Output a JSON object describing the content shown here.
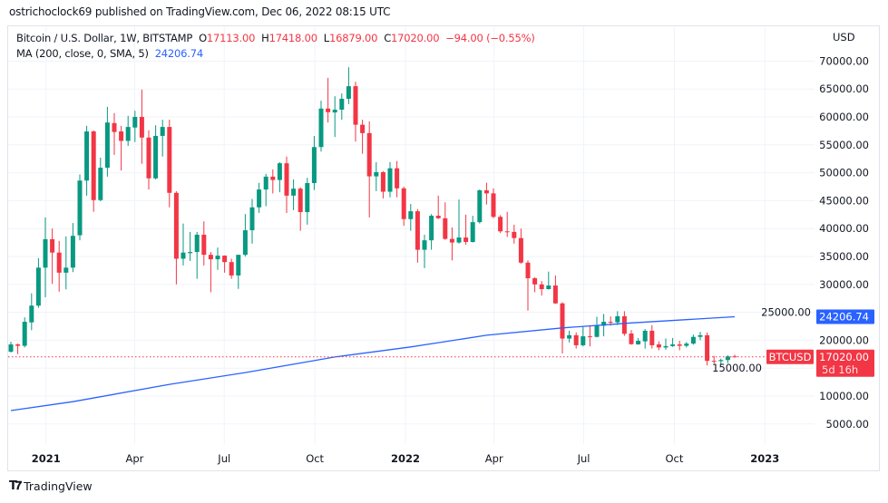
{
  "publisher_line": "ostrichoclock69 published on TradingView.com, Dec 06, 2022 08:15 UTC",
  "legend": {
    "symbol": "Bitcoin / U.S. Dollar, 1W, BITSTAMP",
    "o_label": "O",
    "o": "17113.00",
    "h_label": "H",
    "h": "17418.00",
    "l_label": "L",
    "l": "16879.00",
    "c_label": "C",
    "c": "17020.00",
    "change": "−94.00 (−0.55%)",
    "ma_label": "MA (200, close, 0, SMA, 5)",
    "ma_value": "24206.74"
  },
  "brand": {
    "logo": "TV",
    "name": "TradingView"
  },
  "colors": {
    "up": "#089981",
    "down": "#f23645",
    "ma": "#2962ff",
    "grid": "#f0f3fa",
    "text": "#131722"
  },
  "chart_data": {
    "type": "candlestick",
    "interval": "1W",
    "start": "2020-11-30",
    "currency_label": "USD",
    "y_scale": "linear",
    "ylim": [
      0,
      72000
    ],
    "y_ticks": [
      "5000.00",
      "10000.00",
      "15000.00",
      "20000.00",
      "25000.00",
      "30000.00",
      "35000.00",
      "40000.00",
      "45000.00",
      "50000.00",
      "55000.00",
      "60000.00",
      "65000.00",
      "70000.00"
    ],
    "x_ticks": [
      {
        "label": "2021",
        "date": "2021-01-01",
        "bold": true
      },
      {
        "label": "Apr",
        "date": "2021-04-01"
      },
      {
        "label": "Jul",
        "date": "2021-07-01"
      },
      {
        "label": "Oct",
        "date": "2021-10-01"
      },
      {
        "label": "2022",
        "date": "2022-01-01",
        "bold": true
      },
      {
        "label": "Apr",
        "date": "2022-04-01"
      },
      {
        "label": "Jul",
        "date": "2022-07-01"
      },
      {
        "label": "Oct",
        "date": "2022-10-01"
      },
      {
        "label": "2023",
        "date": "2023-01-01",
        "bold": true
      }
    ],
    "grid": true,
    "ohlc": [
      [
        17950,
        19750,
        17800,
        19250
      ],
      [
        19250,
        19400,
        17500,
        19000
      ],
      [
        19000,
        24100,
        18700,
        23300
      ],
      [
        23200,
        28400,
        21800,
        26200
      ],
      [
        26200,
        34700,
        25800,
        33000
      ],
      [
        33000,
        42000,
        27700,
        38100
      ],
      [
        38100,
        40000,
        30100,
        35700
      ],
      [
        35700,
        37800,
        28700,
        32100
      ],
      [
        32100,
        38600,
        29100,
        33000
      ],
      [
        33000,
        41000,
        32200,
        38700
      ],
      [
        38800,
        49700,
        37900,
        48600
      ],
      [
        48600,
        58400,
        45900,
        57400
      ],
      [
        57400,
        57600,
        43000,
        45100
      ],
      [
        45100,
        52700,
        44900,
        50900
      ],
      [
        50900,
        61800,
        49300,
        59000
      ],
      [
        58900,
        60700,
        53200,
        57300
      ],
      [
        57400,
        58400,
        50400,
        55700
      ],
      [
        55700,
        60200,
        54800,
        58200
      ],
      [
        58100,
        61100,
        55500,
        60000
      ],
      [
        60000,
        64900,
        51600,
        56300
      ],
      [
        56300,
        57600,
        47000,
        49000
      ],
      [
        49000,
        58500,
        48800,
        56600
      ],
      [
        56600,
        59500,
        52900,
        58200
      ],
      [
        58200,
        59500,
        43800,
        46400
      ],
      [
        46400,
        46700,
        30000,
        34600
      ],
      [
        34600,
        40900,
        33400,
        35700
      ],
      [
        35600,
        39400,
        34200,
        35800
      ],
      [
        35800,
        39400,
        31000,
        38900
      ],
      [
        38900,
        41300,
        33400,
        35300
      ],
      [
        35300,
        35800,
        28600,
        34500
      ],
      [
        34500,
        36600,
        32600,
        35150
      ],
      [
        35150,
        35200,
        32100,
        34000
      ],
      [
        34000,
        34600,
        31000,
        31600
      ],
      [
        31600,
        35300,
        29200,
        35300
      ],
      [
        35300,
        42600,
        35000,
        39700
      ],
      [
        39700,
        45300,
        37300,
        43800
      ],
      [
        43800,
        48200,
        42800,
        47000
      ],
      [
        47000,
        49800,
        44000,
        49300
      ],
      [
        49300,
        50600,
        46300,
        48700
      ],
      [
        48700,
        51900,
        46500,
        51700
      ],
      [
        51700,
        52900,
        42800,
        45900
      ],
      [
        45900,
        48800,
        43300,
        47150
      ],
      [
        47150,
        47400,
        39600,
        42950
      ],
      [
        42950,
        49100,
        40700,
        48150
      ],
      [
        48150,
        56600,
        46900,
        54600
      ],
      [
        54600,
        62900,
        53800,
        61500
      ],
      [
        61500,
        67000,
        59000,
        60850
      ],
      [
        60800,
        63700,
        56400,
        61300
      ],
      [
        61300,
        64200,
        59500,
        63250
      ],
      [
        63250,
        68900,
        62300,
        65500
      ],
      [
        65500,
        66300,
        55600,
        58600
      ],
      [
        58600,
        59500,
        53400,
        57100
      ],
      [
        57100,
        59200,
        42000,
        49350
      ],
      [
        49350,
        51900,
        46700,
        50100
      ],
      [
        50100,
        50300,
        45400,
        46600
      ],
      [
        46600,
        51900,
        45600,
        50800
      ],
      [
        50800,
        52100,
        45600,
        47200
      ],
      [
        47200,
        47500,
        40500,
        41700
      ],
      [
        41700,
        44400,
        39600,
        43100
      ],
      [
        43100,
        43500,
        33900,
        36200
      ],
      [
        36200,
        38900,
        32900,
        37900
      ],
      [
        37900,
        42600,
        36200,
        42300
      ],
      [
        42300,
        45900,
        41700,
        41850
      ],
      [
        41850,
        44700,
        38000,
        38150
      ],
      [
        38150,
        40200,
        34300,
        37500
      ],
      [
        37500,
        45200,
        37300,
        38400
      ],
      [
        38400,
        42500,
        37100,
        37600
      ],
      [
        37600,
        42300,
        37500,
        41150
      ],
      [
        41150,
        47000,
        40900,
        46850
      ],
      [
        46850,
        48200,
        44300,
        46300
      ],
      [
        46300,
        47200,
        41850,
        42100
      ],
      [
        42100,
        42400,
        39200,
        39500
      ],
      [
        39500,
        43000,
        38500,
        39400
      ],
      [
        39400,
        40700,
        37300,
        38300
      ],
      [
        38300,
        40000,
        33700,
        33900
      ],
      [
        33900,
        34300,
        25300,
        31100
      ],
      [
        31100,
        31300,
        28600,
        30000
      ],
      [
        30000,
        30600,
        28000,
        29150
      ],
      [
        29150,
        32300,
        29100,
        29800
      ],
      [
        29800,
        31600,
        26500,
        26600
      ],
      [
        26600,
        26800,
        17600,
        20300
      ],
      [
        20300,
        21700,
        19600,
        20900
      ],
      [
        20900,
        21400,
        18500,
        19100
      ],
      [
        19100,
        22400,
        18900,
        20700
      ],
      [
        20700,
        22600,
        18900,
        20600
      ],
      [
        20600,
        24200,
        20500,
        22600
      ],
      [
        22600,
        24700,
        20700,
        23300
      ],
      [
        23300,
        24250,
        22600,
        23200
      ],
      [
        23200,
        25200,
        22700,
        24300
      ],
      [
        24300,
        25200,
        20800,
        21150
      ],
      [
        21200,
        21800,
        19200,
        19300
      ],
      [
        19250,
        20400,
        19200,
        19900
      ],
      [
        19800,
        22000,
        18500,
        21700
      ],
      [
        21700,
        22700,
        18500,
        19100
      ],
      [
        19250,
        19800,
        18200,
        18700
      ],
      [
        18700,
        20300,
        18300,
        18950
      ],
      [
        18950,
        20400,
        18800,
        19250
      ],
      [
        19250,
        19900,
        18200,
        19000
      ],
      [
        19000,
        19700,
        18700,
        19400
      ],
      [
        19400,
        21000,
        19200,
        20600
      ],
      [
        20600,
        21500,
        20000,
        20900
      ],
      [
        20900,
        21400,
        15500,
        16300
      ],
      [
        16300,
        17200,
        15800,
        16250
      ],
      [
        16250,
        16700,
        15600,
        16450
      ],
      [
        16450,
        17300,
        15900,
        17100
      ],
      [
        17113,
        17418,
        16879,
        17020
      ]
    ],
    "ma": {
      "name": "MA (200, close, 0, SMA, 5)",
      "points": [
        [
          "2020-11-30",
          7400
        ],
        [
          "2021-02-01",
          9000
        ],
        [
          "2021-05-10",
          12100
        ],
        [
          "2021-07-26",
          14200
        ],
        [
          "2021-10-25",
          17000
        ],
        [
          "2022-01-10",
          18800
        ],
        [
          "2022-03-28",
          20900
        ],
        [
          "2022-06-13",
          22200
        ],
        [
          "2022-08-22",
          23100
        ],
        [
          "2022-12-05",
          24206.74
        ]
      ]
    },
    "last_price": {
      "symbol": "BTCUSD",
      "value": "17020.00",
      "countdown": "5d 16h"
    },
    "ma_tag": "24206.74"
  }
}
